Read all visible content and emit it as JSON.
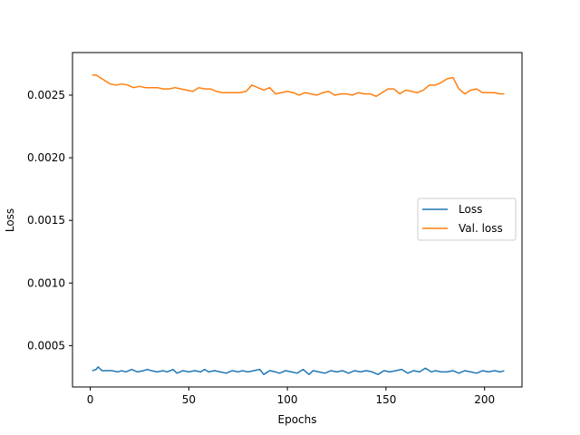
{
  "chart_data": {
    "type": "line",
    "xlabel": "Epochs",
    "ylabel": "Loss",
    "xlim": [
      -9,
      219
    ],
    "ylim": [
      0.00017,
      0.00284
    ],
    "xticks": [
      0,
      50,
      100,
      150,
      200
    ],
    "yticks": [
      0.0005,
      0.001,
      0.0015,
      0.002,
      0.0025
    ],
    "ytick_labels": [
      "0.0005",
      "0.0010",
      "0.0015",
      "0.0020",
      "0.0025"
    ],
    "grid": false,
    "legend": "center-right",
    "series": [
      {
        "name": "Loss",
        "color": "#1f77b4",
        "x": [
          1,
          3,
          4,
          6,
          9,
          11,
          14,
          16,
          18,
          21,
          24,
          27,
          29,
          31,
          34,
          37,
          39,
          42,
          44,
          47,
          50,
          53,
          56,
          58,
          60,
          63,
          66,
          69,
          72,
          75,
          77,
          80,
          83,
          86,
          88,
          91,
          94,
          96,
          99,
          102,
          105,
          108,
          111,
          113,
          116,
          119,
          122,
          125,
          128,
          131,
          134,
          137,
          140,
          143,
          146,
          149,
          152,
          155,
          158,
          161,
          164,
          167,
          170,
          173,
          175,
          178,
          181,
          184,
          187,
          190,
          193,
          196,
          199,
          202,
          205,
          208,
          210
        ],
        "values": [
          0.0003,
          0.00031,
          0.00033,
          0.0003,
          0.0003,
          0.0003,
          0.00029,
          0.0003,
          0.00029,
          0.00031,
          0.00029,
          0.0003,
          0.00031,
          0.0003,
          0.00029,
          0.0003,
          0.00029,
          0.00031,
          0.00028,
          0.0003,
          0.00029,
          0.0003,
          0.00029,
          0.00031,
          0.00029,
          0.0003,
          0.00029,
          0.00028,
          0.0003,
          0.00029,
          0.0003,
          0.00029,
          0.0003,
          0.00031,
          0.00027,
          0.0003,
          0.00029,
          0.00028,
          0.0003,
          0.00029,
          0.00028,
          0.00031,
          0.00027,
          0.0003,
          0.00029,
          0.00028,
          0.0003,
          0.00029,
          0.0003,
          0.00028,
          0.0003,
          0.00029,
          0.0003,
          0.00029,
          0.00027,
          0.0003,
          0.00029,
          0.0003,
          0.00031,
          0.00028,
          0.0003,
          0.00029,
          0.00032,
          0.00029,
          0.0003,
          0.00029,
          0.00029,
          0.0003,
          0.00028,
          0.0003,
          0.00029,
          0.00028,
          0.0003,
          0.00029,
          0.0003,
          0.00029,
          0.0003
        ]
      },
      {
        "name": "Val. loss",
        "color": "#ff7f0e",
        "x": [
          1,
          3,
          5,
          7,
          10,
          13,
          16,
          19,
          22,
          25,
          28,
          31,
          34,
          37,
          40,
          43,
          46,
          49,
          52,
          55,
          58,
          61,
          64,
          67,
          70,
          73,
          76,
          79,
          82,
          85,
          88,
          91,
          94,
          97,
          100,
          103,
          106,
          109,
          112,
          115,
          118,
          121,
          124,
          127,
          130,
          133,
          136,
          139,
          142,
          145,
          148,
          151,
          154,
          157,
          160,
          163,
          166,
          169,
          172,
          175,
          178,
          181,
          184,
          187,
          190,
          193,
          196,
          199,
          202,
          205,
          208,
          210
        ],
        "values": [
          0.00266,
          0.00266,
          0.00264,
          0.00262,
          0.00259,
          0.00258,
          0.00259,
          0.00258,
          0.00256,
          0.00257,
          0.00256,
          0.00256,
          0.00256,
          0.00255,
          0.00255,
          0.00256,
          0.00255,
          0.00254,
          0.00253,
          0.00256,
          0.00255,
          0.00255,
          0.00253,
          0.00252,
          0.00252,
          0.00252,
          0.00252,
          0.00253,
          0.00258,
          0.00256,
          0.00254,
          0.00256,
          0.00251,
          0.00252,
          0.00253,
          0.00252,
          0.0025,
          0.00252,
          0.00251,
          0.0025,
          0.00252,
          0.00253,
          0.0025,
          0.00251,
          0.00251,
          0.0025,
          0.00252,
          0.00251,
          0.00251,
          0.00249,
          0.00252,
          0.00255,
          0.00255,
          0.00251,
          0.00254,
          0.00253,
          0.00252,
          0.00254,
          0.00258,
          0.00258,
          0.0026,
          0.00263,
          0.00264,
          0.00255,
          0.00251,
          0.00254,
          0.00255,
          0.00252,
          0.00252,
          0.00252,
          0.00251,
          0.00251
        ]
      }
    ]
  }
}
